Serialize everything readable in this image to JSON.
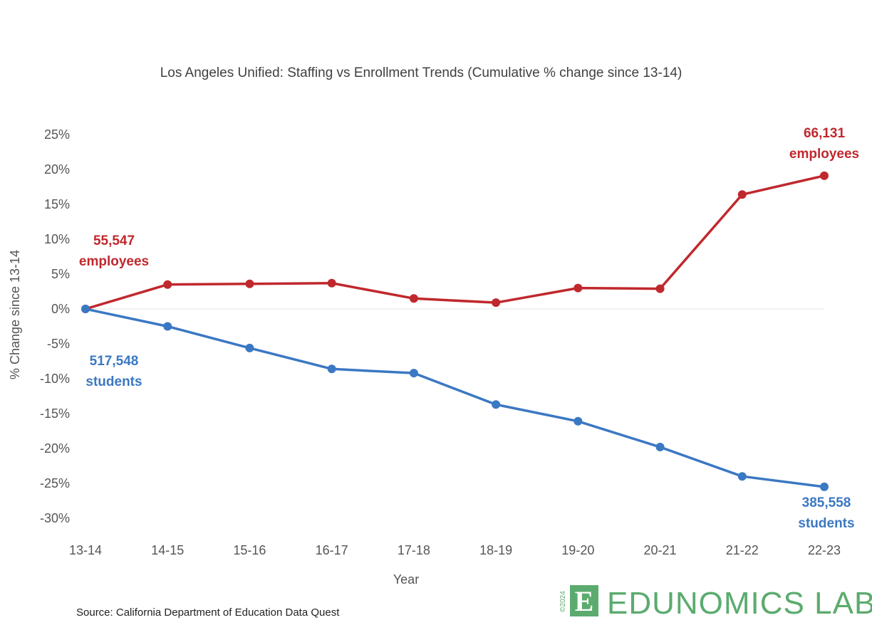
{
  "chart_data": {
    "type": "line",
    "title": "Los Angeles Unified: Staffing vs Enrollment Trends (Cumulative % change since 13-14)",
    "xlabel": "Year",
    "ylabel": "% Change since 13-14",
    "categories": [
      "13-14",
      "14-15",
      "15-16",
      "16-17",
      "17-18",
      "18-19",
      "19-20",
      "20-21",
      "21-22",
      "22-23"
    ],
    "y_ticks": [
      "25%",
      "20%",
      "15%",
      "10%",
      "5%",
      "0%",
      "-5%",
      "-10%",
      "-15%",
      "-20%",
      "-25%",
      "-30%"
    ],
    "y_tick_values": [
      25,
      20,
      15,
      10,
      5,
      0,
      -5,
      -10,
      -15,
      -20,
      -25,
      -30
    ],
    "ylim": [
      -30,
      25
    ],
    "grid": false,
    "zero_line": true,
    "series": [
      {
        "key": "staffing",
        "color": "#c0282d",
        "values": [
          0,
          3.5,
          3.6,
          3.7,
          1.5,
          0.9,
          3.0,
          2.9,
          16.4,
          19.1
        ]
      },
      {
        "key": "enrollment",
        "color": "#3b78c3",
        "values": [
          0,
          -2.5,
          -5.6,
          -8.6,
          -9.2,
          -13.7,
          -16.1,
          -19.8,
          -24.0,
          -25.5
        ]
      }
    ],
    "annotations": {
      "staff_start_1": "55,547",
      "staff_start_2": "employees",
      "staff_end_1": "66,131",
      "staff_end_2": "employees",
      "enroll_start_1": "517,548",
      "enroll_start_2": "students",
      "enroll_end_1": "385,558",
      "enroll_end_2": "students"
    }
  },
  "source": "Source: California Department of Education Data Quest",
  "logo": {
    "mark": "E",
    "text": "EDUNOMICS LAB",
    "copyright": "©2024",
    "color": "#5cab6e"
  }
}
